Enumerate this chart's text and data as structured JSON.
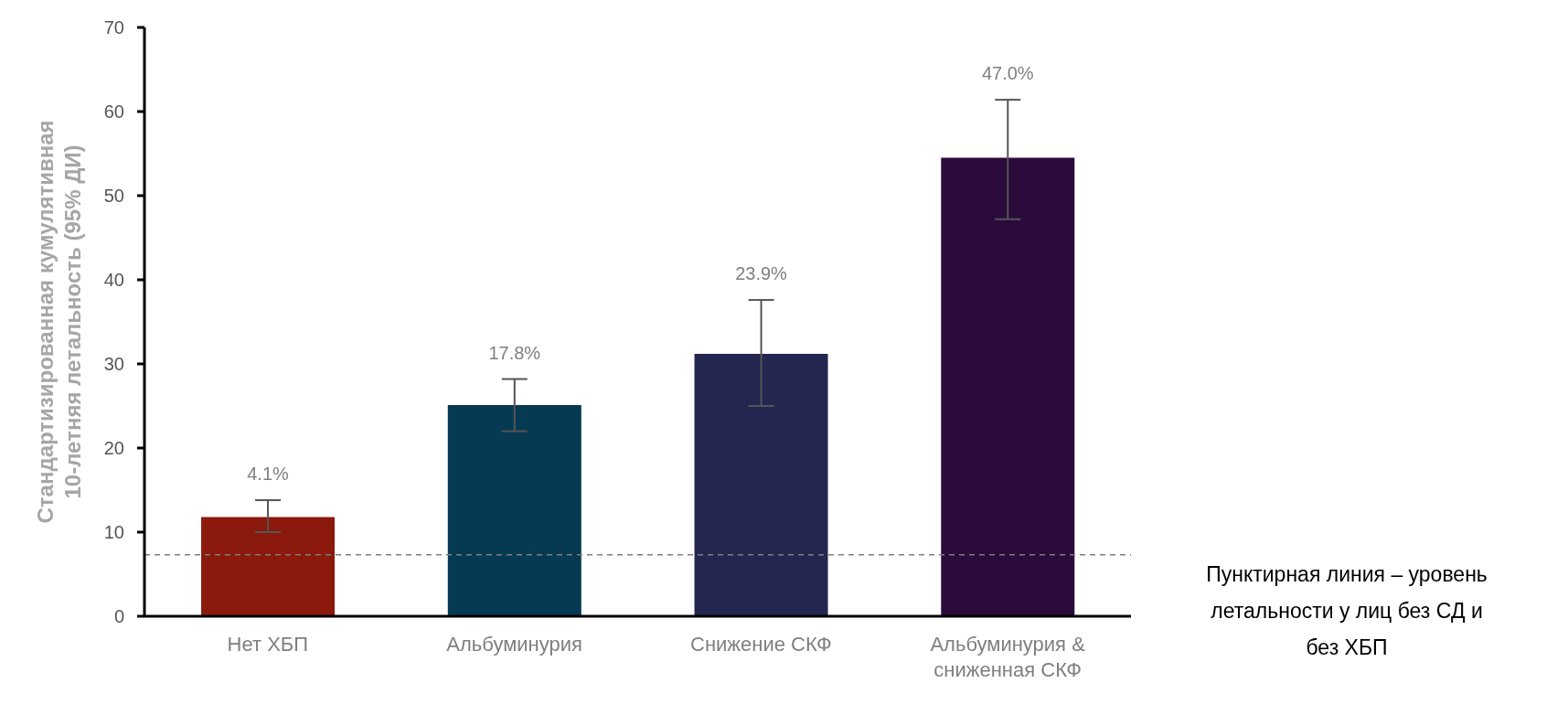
{
  "chart_data": {
    "type": "bar",
    "ylabel": "Стандартизированная кумулятивная\n10-летняя летальность (95% ДИ)",
    "categories": [
      "Нет ХБП",
      "Альбуминурия",
      "Снижение СКФ",
      "Альбуминурия & сниженная СКФ"
    ],
    "values": [
      11.8,
      25.1,
      31.2,
      54.5
    ],
    "colors": [
      "#8b1a0c",
      "#063a52",
      "#23264f",
      "#2b0a3c"
    ],
    "errors": [
      [
        10,
        13.8
      ],
      [
        22,
        28.2
      ],
      [
        25,
        37.6
      ],
      [
        47.2,
        61.4
      ]
    ],
    "ylim": [
      0,
      70
    ],
    "yticks": [
      0,
      10,
      20,
      30,
      40,
      50,
      60,
      70
    ],
    "grid": false,
    "legend": false,
    "ref_lines": [
      {
        "axis": "y",
        "value": 7.3,
        "color": "#7f7f7f",
        "line_style": "dashed"
      }
    ],
    "annotations": [
      "4.1%",
      "17.8%",
      "23.9%",
      "47.0%",
      "Пунктирная линия – уровень летальности у лиц без СД и без ХБП"
    ]
  }
}
